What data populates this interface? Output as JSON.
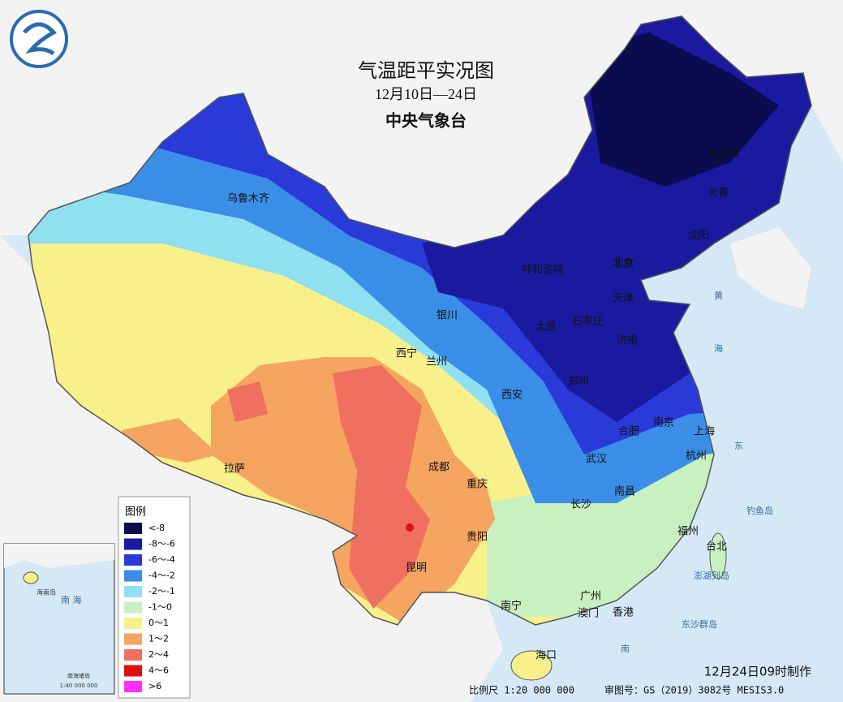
{
  "header": {
    "title": "气温距平实况图",
    "subtitle": "12月10日—24日",
    "agency": "中央气象台"
  },
  "legend": {
    "title": "图例",
    "items": [
      {
        "label": "<-8",
        "color": "#0b0b50"
      },
      {
        "label": "-8～-6",
        "color": "#1a1aa0"
      },
      {
        "label": "-6～-4",
        "color": "#2a3ad8"
      },
      {
        "label": "-4～-2",
        "color": "#3a8ee8"
      },
      {
        "label": "-2～-1",
        "color": "#8fe0f0"
      },
      {
        "label": "-1～0",
        "color": "#c8f0c0"
      },
      {
        "label": "0～1",
        "color": "#f8f08a"
      },
      {
        "label": "1～2",
        "color": "#f5a560"
      },
      {
        "label": "2～4",
        "color": "#f07060"
      },
      {
        "label": "4～6",
        "color": "#e01010"
      },
      {
        "label": ">6",
        "color": "#ff30ff"
      }
    ]
  },
  "cities": [
    "乌鲁木齐",
    "北京",
    "呼和浩特",
    "天津",
    "石家庄",
    "太原",
    "济南",
    "银川",
    "西宁",
    "兰州",
    "西安",
    "郑州",
    "合肥",
    "南京",
    "上海",
    "武汉",
    "杭州",
    "南昌",
    "长沙",
    "福州",
    "成都",
    "重庆",
    "贵阳",
    "昆明",
    "拉萨",
    "南宁",
    "广州",
    "澳门",
    "香港",
    "海口",
    "台北",
    "哈尔滨",
    "长春",
    "沈阳"
  ],
  "seas": [
    "黄",
    "海",
    "东",
    "南",
    "澎湖列岛",
    "东沙群岛",
    "钓鱼岛"
  ],
  "inset": {
    "island": "海南岛",
    "sea": "南 海",
    "name": "南海诸岛",
    "scale": "1:40 000 000"
  },
  "footer": {
    "issued": "12月24日09时制作",
    "scale": "比例尺 1:20 000 000",
    "approval": "审图号：GS（2019）3082号 MESIS3.0"
  }
}
